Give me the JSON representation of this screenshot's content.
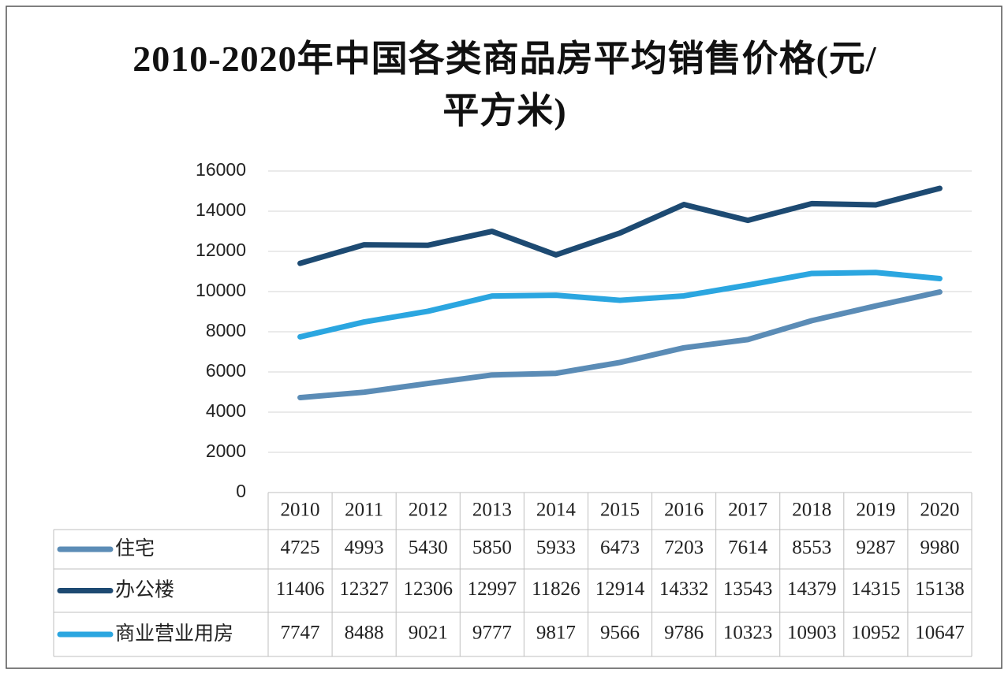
{
  "chart_data": {
    "type": "line",
    "title": "2010-2020年中国各类商品房平均销售价格(元/平方米)",
    "categories": [
      "2010",
      "2011",
      "2012",
      "2013",
      "2014",
      "2015",
      "2016",
      "2017",
      "2018",
      "2019",
      "2020"
    ],
    "series": [
      {
        "name": "住宅",
        "color": "#5b8cb6",
        "values": [
          4725,
          4993,
          5430,
          5850,
          5933,
          6473,
          7203,
          7614,
          8553,
          9287,
          9980
        ]
      },
      {
        "name": "办公楼",
        "color": "#1d4a72",
        "values": [
          11406,
          12327,
          12306,
          12997,
          11826,
          12914,
          14332,
          13543,
          14379,
          14315,
          15138
        ]
      },
      {
        "name": "商业营业用房",
        "color": "#2ba6e0",
        "values": [
          7747,
          8488,
          9021,
          9777,
          9817,
          9566,
          9786,
          10323,
          10903,
          10952,
          10647
        ]
      }
    ],
    "ylim": [
      0,
      16000
    ],
    "yticks": [
      0,
      2000,
      4000,
      6000,
      8000,
      10000,
      12000,
      14000,
      16000
    ],
    "grid": true
  }
}
